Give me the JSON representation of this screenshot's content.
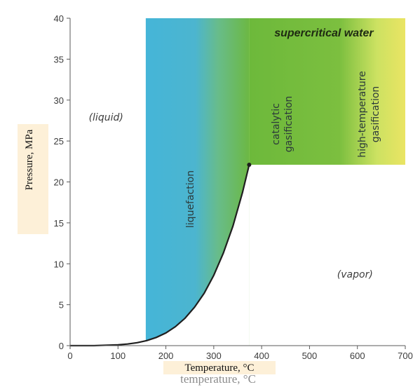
{
  "chart_data": {
    "type": "area",
    "title": "supercritical water",
    "xlabel": "Temperature, °C",
    "xlabel_underlay": "temperature, °C",
    "ylabel": "Pressure, MPa",
    "xlim": [
      0,
      700
    ],
    "ylim": [
      0,
      40
    ],
    "xticks": [
      0,
      100,
      200,
      300,
      400,
      500,
      600,
      700
    ],
    "yticks": [
      0,
      5,
      10,
      15,
      20,
      25,
      30,
      35,
      40
    ],
    "grid": false,
    "series": [
      {
        "name": "vapor pressure curve",
        "x": [
          0,
          50,
          100,
          120,
          140,
          160,
          180,
          200,
          220,
          240,
          260,
          280,
          300,
          320,
          340,
          360,
          374
        ],
        "y": [
          0.0,
          0.0,
          0.1,
          0.2,
          0.36,
          0.62,
          1.0,
          1.55,
          2.32,
          3.35,
          4.7,
          6.4,
          8.6,
          11.3,
          14.6,
          18.7,
          22.1
        ]
      }
    ],
    "critical_point": {
      "x": 374,
      "y": 22.1
    },
    "regions": [
      {
        "label": "liquefaction",
        "x_range": [
          158,
          374
        ],
        "y_range": [
          0,
          40
        ],
        "color": "#45b5d8"
      },
      {
        "label": "catalytic gasification",
        "x_range": [
          374,
          560
        ],
        "y_range": [
          22.1,
          40
        ],
        "color": "#6db93b"
      },
      {
        "label": "high-temperature gasification",
        "x_range": [
          560,
          700
        ],
        "y_range": [
          22.1,
          40
        ],
        "color": "#eae463"
      }
    ],
    "annotations": [
      {
        "text": "(liquid)",
        "x": 75,
        "y": 27.5
      },
      {
        "text": "(vapor)",
        "x": 595,
        "y": 8.3
      },
      {
        "text": "supercritical water",
        "x": 530,
        "y": 38.2
      }
    ],
    "colors": {
      "curve": "#1f1f1f",
      "axis": "#5a5a5a",
      "highlight_bar": "#fdf0d8"
    }
  }
}
